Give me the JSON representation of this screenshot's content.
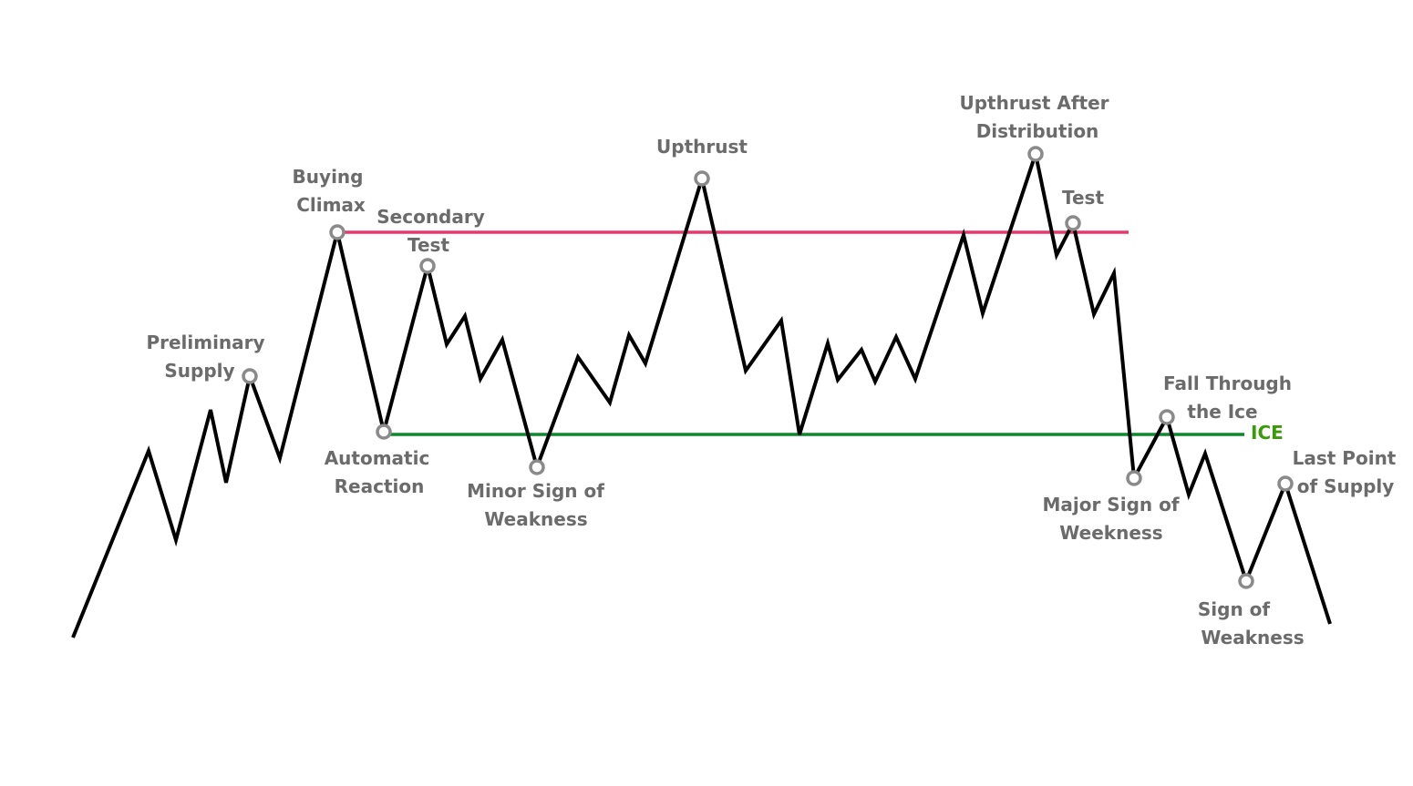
{
  "colors": {
    "price_line": "#000000",
    "resistance_line": "#e8386b",
    "ice_line": "#0a8a2a",
    "ice_label": "#3a9a0a",
    "label_text": "#6b6b6b",
    "marker_stroke": "#8a8a8a"
  },
  "ice_label": "ICE",
  "events": [
    {
      "id": "preliminary-supply",
      "lines": [
        "Preliminary",
        "Supply"
      ]
    },
    {
      "id": "buying-climax",
      "lines": [
        "Buying",
        "Climax"
      ]
    },
    {
      "id": "automatic-reaction",
      "lines": [
        "Automatic",
        "Reaction"
      ]
    },
    {
      "id": "secondary-test",
      "lines": [
        "Secondary",
        "Test"
      ]
    },
    {
      "id": "minor-sign-of-weakness",
      "lines": [
        "Minor Sign of",
        "Weakness"
      ]
    },
    {
      "id": "upthrust",
      "lines": [
        "Upthrust"
      ]
    },
    {
      "id": "upthrust-after-distribution",
      "lines": [
        "Upthrust After",
        "Distribution"
      ]
    },
    {
      "id": "test",
      "lines": [
        "Test"
      ]
    },
    {
      "id": "major-sign-of-weekness",
      "lines": [
        "Major Sign of",
        "Weekness"
      ]
    },
    {
      "id": "fall-through-the-ice",
      "lines": [
        "Fall Through",
        "the Ice"
      ]
    },
    {
      "id": "last-point-of-supply",
      "lines": [
        "Last Point",
        "of Supply"
      ]
    },
    {
      "id": "sign-of-weakness",
      "lines": [
        "Sign of",
        "Weakness"
      ]
    }
  ]
}
